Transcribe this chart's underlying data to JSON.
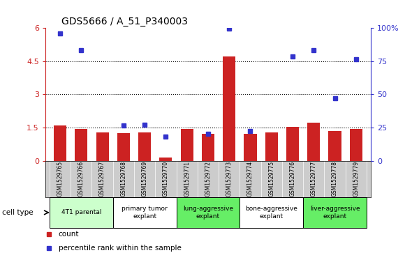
{
  "title": "GDS5666 / A_51_P340003",
  "samples": [
    "GSM1529765",
    "GSM1529766",
    "GSM1529767",
    "GSM1529768",
    "GSM1529769",
    "GSM1529770",
    "GSM1529771",
    "GSM1529772",
    "GSM1529773",
    "GSM1529774",
    "GSM1529775",
    "GSM1529776",
    "GSM1529777",
    "GSM1529778",
    "GSM1529779"
  ],
  "counts": [
    1.58,
    1.43,
    1.27,
    1.25,
    1.28,
    0.13,
    1.42,
    1.21,
    4.72,
    1.22,
    1.27,
    1.53,
    1.72,
    1.33,
    1.43
  ],
  "percentiles": [
    5.75,
    5.0,
    null,
    1.6,
    1.63,
    1.1,
    null,
    1.22,
    5.97,
    1.33,
    null,
    4.7,
    5.0,
    2.83,
    4.57
  ],
  "ylim_left": [
    0,
    6
  ],
  "yticks_left": [
    0,
    1.5,
    3,
    4.5,
    6
  ],
  "ytick_labels_left": [
    "0",
    "1.5",
    "3",
    "4.5",
    "6"
  ],
  "ytick_labels_right": [
    "0",
    "25",
    "50",
    "75",
    "100%"
  ],
  "bar_color": "#cc2222",
  "dot_color": "#3333cc",
  "plot_bg": "#ffffff",
  "sample_row_bg": "#cccccc",
  "groups": [
    {
      "label": "4T1 parental",
      "start": 0,
      "end": 2,
      "color": "#ccffcc"
    },
    {
      "label": "primary tumor\nexplant",
      "start": 3,
      "end": 5,
      "color": "#ffffff"
    },
    {
      "label": "lung-aggressive\nexplant",
      "start": 6,
      "end": 8,
      "color": "#66ee66"
    },
    {
      "label": "bone-aggressive\nexplant",
      "start": 9,
      "end": 11,
      "color": "#ffffff"
    },
    {
      "label": "liver-aggressive\nexplant",
      "start": 12,
      "end": 14,
      "color": "#66ee66"
    }
  ],
  "legend_count_label": "count",
  "legend_percentile_label": "percentile rank within the sample",
  "cell_type_label": "cell type",
  "dotted_gridlines": [
    1.5,
    3.0,
    4.5
  ],
  "background_color": "#ffffff"
}
